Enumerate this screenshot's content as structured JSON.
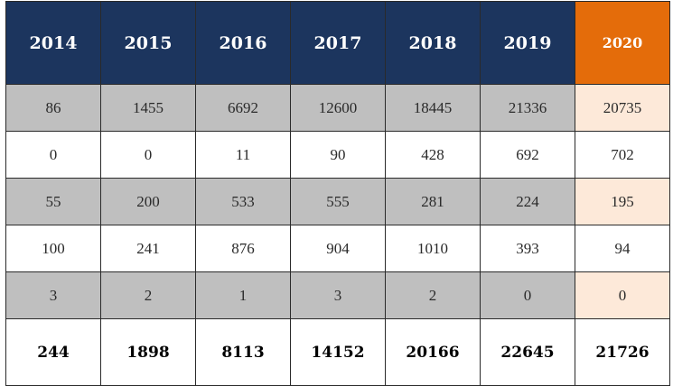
{
  "table": {
    "header": [
      "2014",
      "2015",
      "2016",
      "2017",
      "2018",
      "2019",
      "2020"
    ],
    "rows": [
      [
        "86",
        "1455",
        "6692",
        "12600",
        "18445",
        "21336",
        "20735"
      ],
      [
        "0",
        "0",
        "11",
        "90",
        "428",
        "692",
        "702"
      ],
      [
        "55",
        "200",
        "533",
        "555",
        "281",
        "224",
        "195"
      ],
      [
        "100",
        "241",
        "876",
        "904",
        "1010",
        "393",
        "94"
      ],
      [
        "3",
        "2",
        "1",
        "3",
        "2",
        "0",
        "0"
      ]
    ],
    "total": [
      "244",
      "1898",
      "8113",
      "14152",
      "20166",
      "22645",
      "21726"
    ]
  },
  "colors": {
    "header_bg": "#1c355e",
    "header_highlight_bg": "#e46c0a",
    "shaded_row_bg": "#bfbfbf",
    "shaded_highlight_bg": "#fde9d9"
  }
}
